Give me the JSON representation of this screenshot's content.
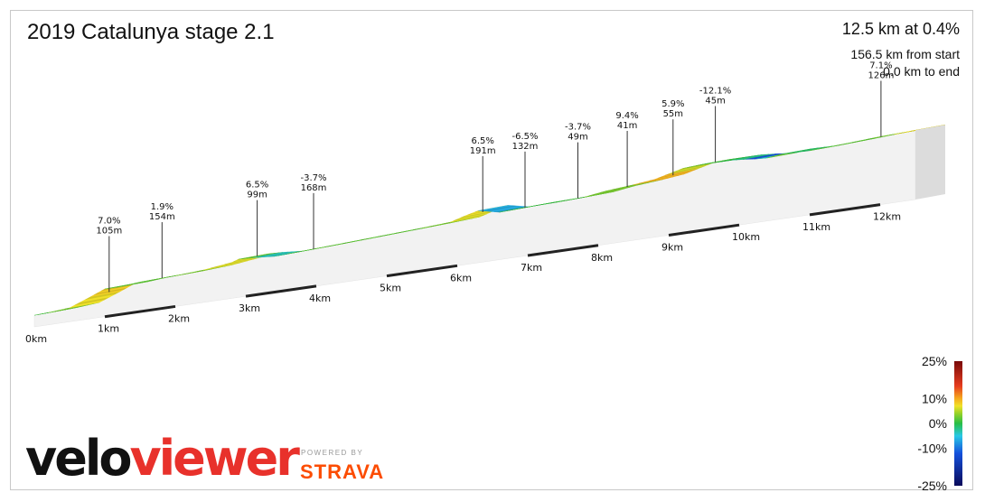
{
  "header": {
    "title": "2019 Catalunya stage 2.1",
    "stat_main": "12.5 km at 0.4%",
    "stat_from_start": "156.5 km from start",
    "stat_to_end": "0.0 km to end"
  },
  "branding": {
    "logo_part1": "velo",
    "logo_part2": "viewer",
    "powered_by": "POWERED BY",
    "strava": "STRAVA"
  },
  "colors": {
    "brand_red": "#e8312b",
    "strava_orange": "#fc4c02"
  },
  "chart_data": {
    "type": "area",
    "title": "2019 Catalunya stage 2.1",
    "x_unit": "km",
    "distance_km": 12.5,
    "avg_gradient_pct": 0.4,
    "x_ticks": [
      "0km",
      "1km",
      "2km",
      "3km",
      "4km",
      "5km",
      "6km",
      "7km",
      "8km",
      "9km",
      "10km",
      "11km",
      "12km"
    ],
    "profile": {
      "x": [
        0,
        0.2,
        0.5,
        0.8,
        1.0,
        1.2,
        1.5,
        2.0,
        2.4,
        2.8,
        2.9,
        3.1,
        3.4,
        3.6,
        4.0,
        4.5,
        5.0,
        5.5,
        5.9,
        6.1,
        6.3,
        6.6,
        7.0,
        7.4,
        7.8,
        8.1,
        8.5,
        8.8,
        9.0,
        9.2,
        9.45,
        9.7,
        9.9,
        10.1,
        10.25,
        10.4,
        10.6,
        11.0,
        11.5,
        11.9,
        12.2,
        12.5
      ],
      "elev": [
        10,
        10.5,
        12,
        19,
        24,
        24,
        25.5,
        26.5,
        28,
        31,
        33,
        32.5,
        31,
        31.5,
        32.5,
        34,
        35.5,
        37,
        38.5,
        42,
        45,
        41,
        42,
        42.5,
        43.5,
        46,
        48,
        50,
        53,
        56,
        57,
        57,
        57,
        56,
        55,
        54.5,
        56,
        55.5,
        57,
        58.5,
        59,
        60
      ],
      "grad": [
        1,
        3,
        7,
        8,
        1.9,
        2,
        2,
        3,
        6.5,
        6.5,
        2,
        -3.7,
        -2,
        2,
        2,
        2,
        2,
        3,
        6.5,
        7,
        -6.5,
        1,
        0.5,
        1,
        3,
        3,
        9.4,
        9.4,
        5.9,
        3,
        1,
        0,
        -2,
        -12.1,
        -4,
        3,
        -1,
        2,
        2,
        3,
        7.1
      ]
    },
    "climbs": [
      {
        "grad": "7.0%",
        "len": "105m",
        "km": 0.85
      },
      {
        "grad": "1.9%",
        "len": "154m",
        "km": 1.6
      },
      {
        "grad": "6.5%",
        "len": "99m",
        "km": 2.95
      },
      {
        "grad": "-3.7%",
        "len": "168m",
        "km": 3.75
      },
      {
        "grad": "6.5%",
        "len": "191m",
        "km": 6.15
      },
      {
        "grad": "-6.5%",
        "len": "132m",
        "km": 6.75
      },
      {
        "grad": "-3.7%",
        "len": "49m",
        "km": 7.5
      },
      {
        "grad": "9.4%",
        "len": "41m",
        "km": 8.2
      },
      {
        "grad": "5.9%",
        "len": "55m",
        "km": 8.85
      },
      {
        "grad": "-12.1%",
        "len": "45m",
        "km": 9.45
      },
      {
        "grad": "7.1%",
        "len": "126m",
        "km": 11.8
      }
    ],
    "legend": {
      "labels": [
        "25%",
        "10%",
        "0%",
        "-10%",
        "-25%"
      ],
      "values": [
        25,
        10,
        0,
        -10,
        -25
      ]
    }
  }
}
